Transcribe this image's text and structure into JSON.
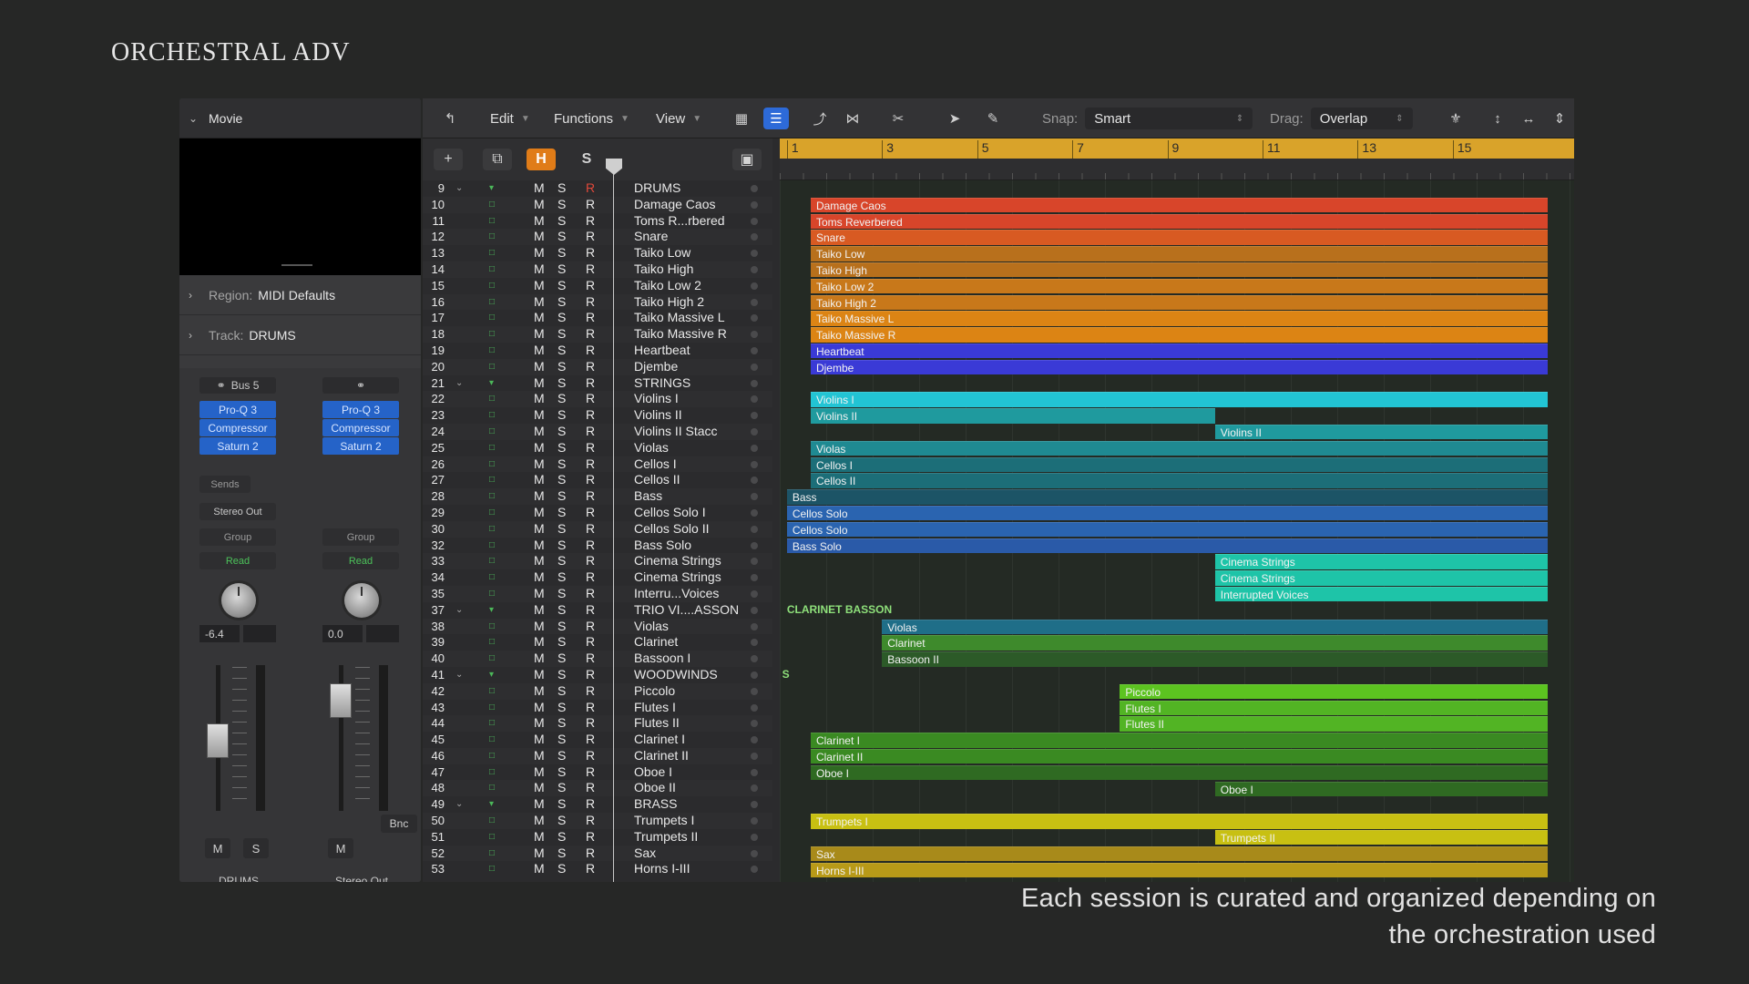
{
  "brand": "ORCHESTRAL ADV",
  "caption_line1": "Each session is curated and organized depending on",
  "caption_line2": "the orchestration used",
  "inspector": {
    "movie_label": "Movie",
    "region_key": "Region:",
    "region_value": "MIDI Defaults",
    "track_key": "Track:",
    "track_value": "DRUMS",
    "strip1": {
      "bus": "Bus 5",
      "plugins": [
        "Pro-Q 3",
        "Compressor",
        "Saturn 2"
      ],
      "sends": "Sends",
      "output": "Stereo Out",
      "group": "Group",
      "automation": "Read",
      "volume": "-6.4",
      "mute": "M",
      "solo": "S",
      "name": "DRUMS"
    },
    "strip2": {
      "plugins": [
        "Pro-Q 3",
        "Compressor",
        "Saturn 2"
      ],
      "group": "Group",
      "automation": "Read",
      "volume": "0.0",
      "mute": "M",
      "bounce": "Bnc",
      "name": "Stereo Out"
    }
  },
  "toolbar": {
    "edit": "Edit",
    "functions": "Functions",
    "view": "View",
    "snap_label": "Snap:",
    "snap_value": "Smart",
    "drag_label": "Drag:",
    "drag_value": "Overlap"
  },
  "track_header": {
    "add": "+",
    "h": "H",
    "s": "S"
  },
  "track_buttons": {
    "m": "M",
    "s": "S",
    "r": "R"
  },
  "ruler": [
    "1",
    "3",
    "5",
    "7",
    "9",
    "11",
    "13",
    "15"
  ],
  "tracks": [
    {
      "num": "9",
      "name": "DRUMS",
      "folder": true,
      "rec": "R"
    },
    {
      "num": "10",
      "name": "Damage Caos"
    },
    {
      "num": "11",
      "name": "Toms R...rbered"
    },
    {
      "num": "12",
      "name": "Snare"
    },
    {
      "num": "13",
      "name": "Taiko Low"
    },
    {
      "num": "14",
      "name": "Taiko High"
    },
    {
      "num": "15",
      "name": "Taiko Low 2"
    },
    {
      "num": "16",
      "name": "Taiko High 2"
    },
    {
      "num": "17",
      "name": "Taiko Massive L"
    },
    {
      "num": "18",
      "name": "Taiko Massive R"
    },
    {
      "num": "19",
      "name": "Heartbeat"
    },
    {
      "num": "20",
      "name": "Djembe"
    },
    {
      "num": "21",
      "name": "STRINGS",
      "folder": true
    },
    {
      "num": "22",
      "name": "Violins I"
    },
    {
      "num": "23",
      "name": "Violins II"
    },
    {
      "num": "24",
      "name": "Violins II Stacc"
    },
    {
      "num": "25",
      "name": "Violas"
    },
    {
      "num": "26",
      "name": "Cellos I"
    },
    {
      "num": "27",
      "name": "Cellos II"
    },
    {
      "num": "28",
      "name": "Bass"
    },
    {
      "num": "29",
      "name": "Cellos Solo I"
    },
    {
      "num": "30",
      "name": "Cellos Solo II"
    },
    {
      "num": "32",
      "name": "Bass Solo"
    },
    {
      "num": "33",
      "name": "Cinema Strings"
    },
    {
      "num": "34",
      "name": "Cinema Strings"
    },
    {
      "num": "35",
      "name": "Interru...Voices"
    },
    {
      "num": "37",
      "name": "TRIO VI....ASSON",
      "folder": true
    },
    {
      "num": "38",
      "name": "Violas"
    },
    {
      "num": "39",
      "name": "Clarinet"
    },
    {
      "num": "40",
      "name": "Bassoon I"
    },
    {
      "num": "41",
      "name": "WOODWINDS",
      "folder": true
    },
    {
      "num": "42",
      "name": "Piccolo"
    },
    {
      "num": "43",
      "name": "Flutes I"
    },
    {
      "num": "44",
      "name": "Flutes II"
    },
    {
      "num": "45",
      "name": "Clarinet I"
    },
    {
      "num": "46",
      "name": "Clarinet II"
    },
    {
      "num": "47",
      "name": "Oboe I"
    },
    {
      "num": "48",
      "name": "Oboe II"
    },
    {
      "num": "49",
      "name": "BRASS",
      "folder": true
    },
    {
      "num": "50",
      "name": "Trumpets I"
    },
    {
      "num": "51",
      "name": "Trumpets II"
    },
    {
      "num": "52",
      "name": "Sax"
    },
    {
      "num": "53",
      "name": "Horns I-III"
    }
  ],
  "regions": [
    {
      "row": 1,
      "label": "Damage Caos",
      "start": 1.5,
      "end": 17,
      "color": "#d8452a"
    },
    {
      "row": 2,
      "label": "Toms Reverbered",
      "start": 1.5,
      "end": 17,
      "color": "#d8452a"
    },
    {
      "row": 3,
      "label": "Snare",
      "start": 1.5,
      "end": 17,
      "color": "#d85a22"
    },
    {
      "row": 4,
      "label": "Taiko Low",
      "start": 1.5,
      "end": 17,
      "color": "#b8701c"
    },
    {
      "row": 5,
      "label": "Taiko High",
      "start": 1.5,
      "end": 17,
      "color": "#b8701c"
    },
    {
      "row": 6,
      "label": "Taiko Low 2",
      "start": 1.5,
      "end": 17,
      "color": "#c8781a"
    },
    {
      "row": 7,
      "label": "Taiko High 2",
      "start": 1.5,
      "end": 17,
      "color": "#c8781a"
    },
    {
      "row": 8,
      "label": "Taiko Massive L",
      "start": 1.5,
      "end": 17,
      "color": "#dc8414"
    },
    {
      "row": 9,
      "label": "Taiko Massive R",
      "start": 1.5,
      "end": 17,
      "color": "#dc8414"
    },
    {
      "row": 10,
      "label": "Heartbeat",
      "start": 1.5,
      "end": 17,
      "color": "#3a3ad6"
    },
    {
      "row": 11,
      "label": "Djembe",
      "start": 1.5,
      "end": 17,
      "color": "#3a3ad6"
    },
    {
      "row": 13,
      "label": "Violins I",
      "start": 1.5,
      "end": 17,
      "color": "#22c4d4"
    },
    {
      "row": 14,
      "label": "Violins II",
      "start": 1.5,
      "end": 10,
      "color": "#1f9a9e"
    },
    {
      "row": 15,
      "label": "Violins II",
      "start": 10,
      "end": 17,
      "color": "#1f9a9e"
    },
    {
      "row": 16,
      "label": "Violas",
      "start": 1.5,
      "end": 17,
      "color": "#1f8a92"
    },
    {
      "row": 17,
      "label": "Cellos I",
      "start": 1.5,
      "end": 17,
      "color": "#1c6e78"
    },
    {
      "row": 18,
      "label": "Cellos II",
      "start": 1.5,
      "end": 17,
      "color": "#1c6e78"
    },
    {
      "row": 19,
      "label": "Bass",
      "start": 1,
      "end": 17,
      "color": "#1c5466"
    },
    {
      "row": 20,
      "label": "Cellos Solo",
      "start": 1,
      "end": 17,
      "color": "#2a64b0"
    },
    {
      "row": 21,
      "label": "Cellos Solo",
      "start": 1,
      "end": 17,
      "color": "#2a64b0"
    },
    {
      "row": 22,
      "label": "Bass Solo",
      "start": 1,
      "end": 17,
      "color": "#2a5aa8"
    },
    {
      "row": 23,
      "label": "Cinema Strings",
      "start": 10,
      "end": 17,
      "color": "#1ec4a8"
    },
    {
      "row": 24,
      "label": "Cinema Strings",
      "start": 10,
      "end": 17,
      "color": "#1ec4a8"
    },
    {
      "row": 25,
      "label": "Interrupted Voices",
      "start": 10,
      "end": 17,
      "color": "#1ec4a8"
    },
    {
      "row": 27,
      "label": "Violas",
      "start": 3,
      "end": 17,
      "color": "#1f6e88"
    },
    {
      "row": 28,
      "label": "Clarinet",
      "start": 3,
      "end": 17,
      "color": "#3e8a2c"
    },
    {
      "row": 29,
      "label": "Bassoon II",
      "start": 3,
      "end": 17,
      "color": "#2c5a28"
    },
    {
      "row": 31,
      "label": "Piccolo",
      "start": 8,
      "end": 17,
      "color": "#5cc420"
    },
    {
      "row": 32,
      "label": "Flutes I",
      "start": 8,
      "end": 17,
      "color": "#52b424"
    },
    {
      "row": 33,
      "label": "Flutes II",
      "start": 8,
      "end": 17,
      "color": "#52b424"
    },
    {
      "row": 34,
      "label": "Clarinet I",
      "start": 1.5,
      "end": 17,
      "color": "#3a8a22"
    },
    {
      "row": 35,
      "label": "Clarinet II",
      "start": 1.5,
      "end": 17,
      "color": "#3a8a22"
    },
    {
      "row": 36,
      "label": "Oboe I",
      "start": 1.5,
      "end": 17,
      "color": "#2f6a22"
    },
    {
      "row": 37,
      "label": "Oboe I",
      "start": 10,
      "end": 17,
      "color": "#2f6a22"
    },
    {
      "row": 39,
      "label": "Trumpets I",
      "start": 1.5,
      "end": 17,
      "color": "#c8c012"
    },
    {
      "row": 40,
      "label": "Trumpets II",
      "start": 10,
      "end": 17,
      "color": "#c8c012"
    },
    {
      "row": 41,
      "label": "Sax",
      "start": 1.5,
      "end": 17,
      "color": "#a88a1a"
    },
    {
      "row": 42,
      "label": "Horns I-III",
      "start": 1.5,
      "end": 17,
      "color": "#b89a18"
    }
  ],
  "folder_labels": [
    {
      "row": 26,
      "label": "CLARINET BASSON",
      "bar": 1
    },
    {
      "row": 30,
      "label": "S",
      "bar": 0.9
    }
  ]
}
